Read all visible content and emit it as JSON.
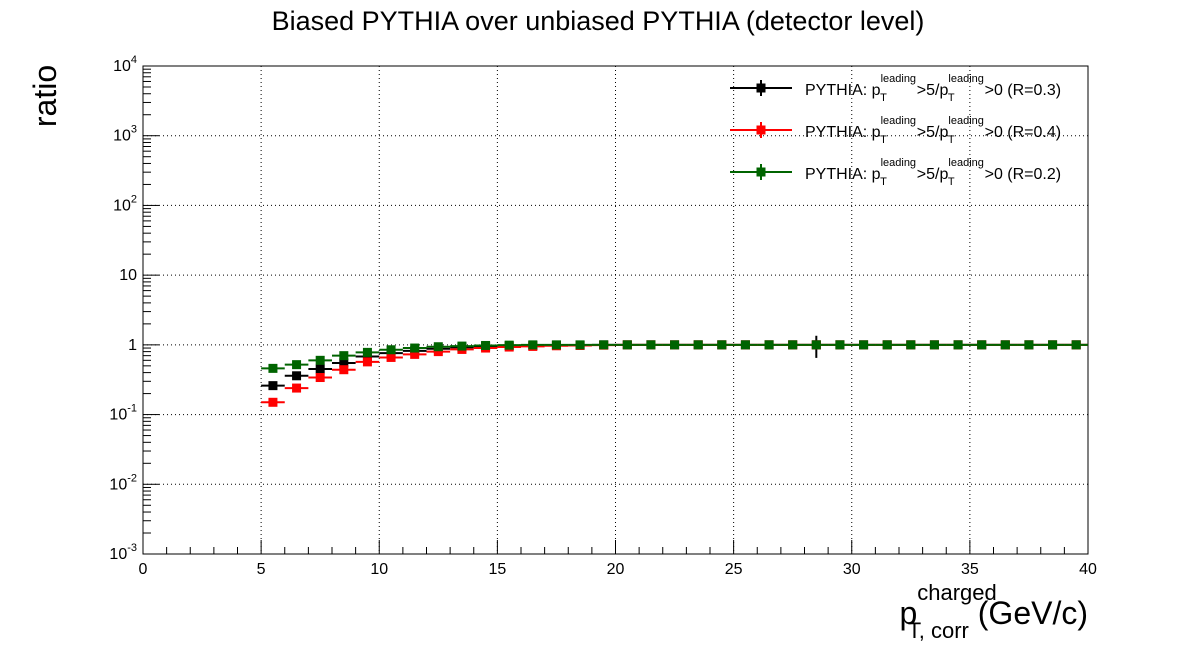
{
  "chart_data": {
    "type": "scatter",
    "title": "Biased PYTHIA over unbiased PYTHIA (detector level)",
    "ylabel": "ratio",
    "xlabel": {
      "main": "p",
      "sup": "charged",
      "sub": "T, corr",
      "unit": " (GeV/c)"
    },
    "xlim": [
      0,
      40
    ],
    "ylim": [
      0.001,
      10000
    ],
    "yscale": "log",
    "grid": true,
    "legend_position": "top-right",
    "x_ticks": [
      0,
      5,
      10,
      15,
      20,
      25,
      30,
      35,
      40
    ],
    "x_tick_labels": [
      "0",
      "5",
      "10",
      "15",
      "20",
      "25",
      "30",
      "35",
      "40"
    ],
    "y_ticks": [
      {
        "value": 0.001,
        "base": "10",
        "exp": "-3"
      },
      {
        "value": 0.01,
        "base": "10",
        "exp": "-2"
      },
      {
        "value": 0.1,
        "base": "10",
        "exp": "-1"
      },
      {
        "value": 1,
        "base": "1",
        "exp": ""
      },
      {
        "value": 10,
        "base": "10",
        "exp": ""
      },
      {
        "value": 100,
        "base": "10",
        "exp": "2"
      },
      {
        "value": 1000,
        "base": "10",
        "exp": "3"
      },
      {
        "value": 10000,
        "base": "10",
        "exp": "4"
      }
    ],
    "x": [
      5.5,
      6.5,
      7.5,
      8.5,
      9.5,
      10.5,
      11.5,
      12.5,
      13.5,
      14.5,
      15.5,
      16.5,
      17.5,
      18.5,
      19.5,
      20.5,
      21.5,
      22.5,
      23.5,
      24.5,
      25.5,
      26.5,
      27.5,
      28.5,
      29.5,
      30.5,
      31.5,
      32.5,
      33.5,
      34.5,
      35.5,
      36.5,
      37.5,
      38.5,
      39.5
    ],
    "series": [
      {
        "legend": {
          "prefix": "PYTHIA: p",
          "sub1": "T",
          "sup1": "leading",
          "mid": ">5/p",
          "sub2": "T",
          "sup2": "leading",
          "suffix": ">0 (R=0.3)"
        },
        "color": "#000000",
        "values": [
          0.26,
          0.36,
          0.45,
          0.55,
          0.68,
          0.76,
          0.82,
          0.88,
          0.92,
          0.95,
          0.97,
          0.98,
          0.99,
          0.99,
          1.0,
          1.0,
          1.0,
          1.0,
          1.0,
          1.0,
          1.0,
          1.0,
          1.0,
          1.0,
          1.0,
          1.0,
          1.0,
          1.0,
          1.0,
          1.0,
          1.0,
          1.0,
          1.0,
          1.0,
          1.0
        ],
        "errors": [
          0.02,
          0.02,
          0.02,
          0.02,
          0.02,
          0.02,
          0.02,
          0.02,
          0.02,
          0.02,
          0.02,
          0.02,
          0.02,
          0.02,
          0.02,
          0.02,
          0.02,
          0.02,
          0.02,
          0.02,
          0.02,
          0.02,
          0.02,
          0.35,
          0.02,
          0.02,
          0.02,
          0.02,
          0.02,
          0.02,
          0.02,
          0.02,
          0.02,
          0.02,
          0.02
        ]
      },
      {
        "legend": {
          "prefix": "PYTHIA: p",
          "sub1": "T",
          "sup1": "leading",
          "mid": ">5/p",
          "sub2": "T",
          "sup2": "leading",
          "suffix": ">0 (R=0.4)"
        },
        "color": "#ff0000",
        "values": [
          0.15,
          0.24,
          0.34,
          0.44,
          0.57,
          0.66,
          0.73,
          0.8,
          0.86,
          0.9,
          0.93,
          0.95,
          0.97,
          0.98,
          0.99,
          1.0,
          1.0,
          1.0,
          1.0,
          1.0,
          1.0,
          1.0,
          1.0,
          1.0,
          1.0,
          1.0,
          1.0,
          1.0,
          1.0,
          1.0,
          1.0,
          1.0,
          1.0,
          1.0,
          1.0
        ],
        "errors": [
          0.015,
          0.015,
          0.015,
          0.015,
          0.015,
          0.015,
          0.015,
          0.015,
          0.015,
          0.015,
          0.015,
          0.015,
          0.015,
          0.015,
          0.015,
          0.015,
          0.015,
          0.015,
          0.015,
          0.015,
          0.015,
          0.015,
          0.015,
          0.015,
          0.015,
          0.015,
          0.015,
          0.015,
          0.015,
          0.015,
          0.015,
          0.015,
          0.015,
          0.015,
          0.015
        ]
      },
      {
        "legend": {
          "prefix": "PYTHIA: p",
          "sub1": "T",
          "sup1": "leading",
          "mid": ">5/p",
          "sub2": "T",
          "sup2": "leading",
          "suffix": ">0 (R=0.2)"
        },
        "color": "#006400",
        "values": [
          0.46,
          0.52,
          0.6,
          0.7,
          0.78,
          0.85,
          0.9,
          0.94,
          0.96,
          0.98,
          0.99,
          1.0,
          1.0,
          1.0,
          1.0,
          1.0,
          1.0,
          1.0,
          1.0,
          1.0,
          1.0,
          1.0,
          1.0,
          1.0,
          1.0,
          1.0,
          1.0,
          1.0,
          1.0,
          1.0,
          1.0,
          1.0,
          1.0,
          1.0,
          1.0
        ],
        "errors": [
          0.02,
          0.02,
          0.02,
          0.02,
          0.02,
          0.02,
          0.02,
          0.02,
          0.02,
          0.02,
          0.02,
          0.02,
          0.02,
          0.02,
          0.02,
          0.02,
          0.02,
          0.02,
          0.02,
          0.02,
          0.02,
          0.02,
          0.02,
          0.02,
          0.02,
          0.02,
          0.02,
          0.02,
          0.02,
          0.02,
          0.02,
          0.02,
          0.02,
          0.02,
          0.02
        ]
      }
    ]
  }
}
